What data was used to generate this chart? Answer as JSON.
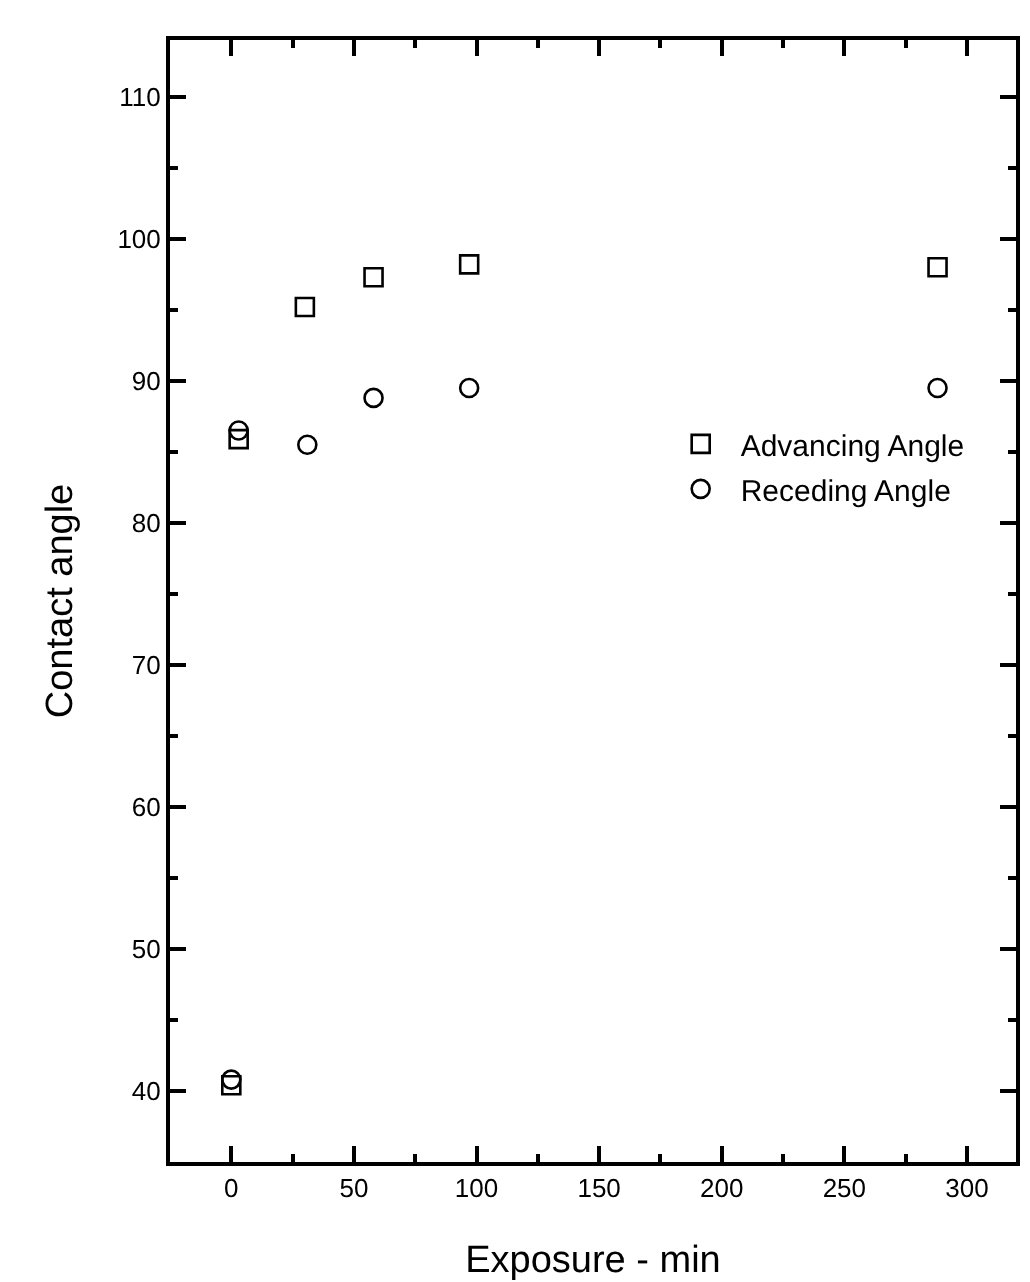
{
  "chart_data": {
    "type": "scatter",
    "xlabel": "Exposure - min",
    "ylabel": "Contact angle",
    "xlim": [
      -25,
      320
    ],
    "xticks": [
      0,
      50,
      100,
      150,
      200,
      250,
      300
    ],
    "ylim": [
      35,
      114
    ],
    "yticks": [
      40,
      50,
      60,
      70,
      80,
      90,
      100,
      110
    ],
    "grid": false,
    "legend": "right",
    "series": [
      {
        "name": "Advancing Angle",
        "color": "#000000",
        "marker": "square",
        "x": [
          0,
          3,
          30,
          58,
          97,
          288
        ],
        "values": [
          40.4,
          85.9,
          95.2,
          97.3,
          98.2,
          98.0
        ]
      },
      {
        "name": "Receding Angle",
        "color": "#000000",
        "marker": "circle",
        "x": [
          0,
          3,
          31,
          58,
          97,
          288
        ],
        "values": [
          40.8,
          86.5,
          85.5,
          88.8,
          89.5,
          89.5
        ]
      }
    ]
  }
}
